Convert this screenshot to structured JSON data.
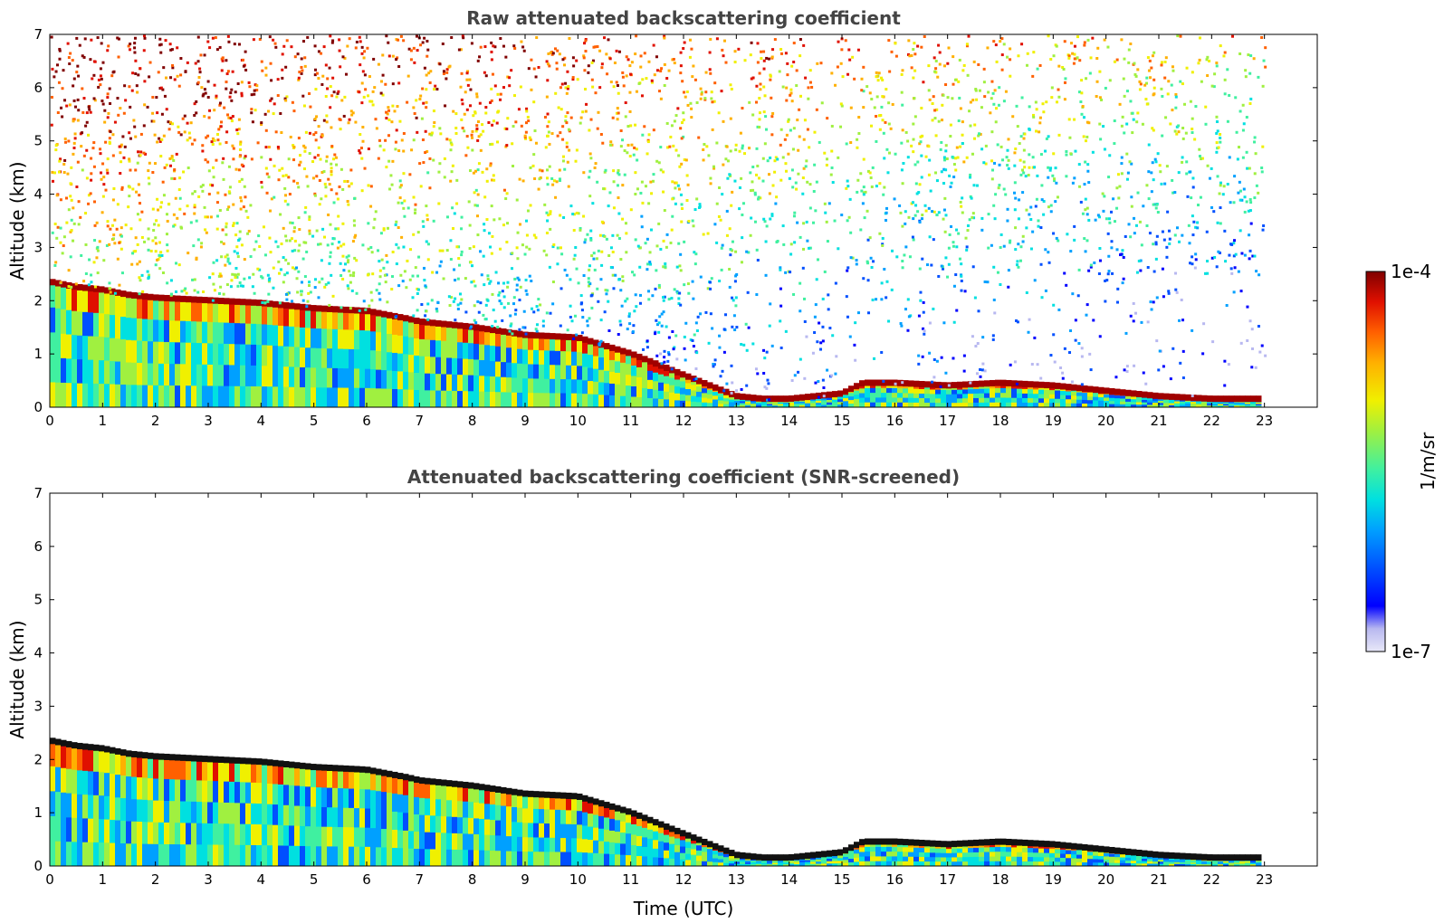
{
  "chart_data": [
    {
      "type": "heatmap",
      "title": "Raw attenuated backscattering coefficient",
      "xlabel": "",
      "ylabel": "Altitude (km)",
      "xlim": [
        0,
        24
      ],
      "ylim": [
        0,
        7
      ],
      "x_ticks": [
        "0",
        "1",
        "2",
        "3",
        "4",
        "5",
        "6",
        "7",
        "8",
        "9",
        "10",
        "11",
        "12",
        "13",
        "14",
        "15",
        "16",
        "17",
        "18",
        "19",
        "20",
        "21",
        "22",
        "23"
      ],
      "y_ticks": [
        "0",
        "1",
        "2",
        "3",
        "4",
        "5",
        "6",
        "7"
      ],
      "data_end_time": 23,
      "noise_dense": true,
      "boundary_layer_top_km": {
        "x": [
          0,
          0.5,
          1,
          1.5,
          2,
          3,
          4,
          5,
          6,
          6.8,
          7,
          8,
          9,
          10,
          11,
          11.5,
          12,
          12.5,
          13,
          13.5,
          14,
          15,
          15.4,
          16,
          17,
          18,
          19,
          20,
          21,
          22,
          23
        ],
        "y": [
          2.35,
          2.25,
          2.2,
          2.1,
          2.05,
          2.0,
          1.95,
          1.85,
          1.8,
          1.65,
          1.6,
          1.5,
          1.35,
          1.3,
          1.0,
          0.8,
          0.6,
          0.4,
          0.2,
          0.15,
          0.15,
          0.25,
          0.45,
          0.45,
          0.4,
          0.45,
          0.4,
          0.3,
          0.2,
          0.15,
          0.15
        ]
      },
      "colorbar": {
        "min_label": "1e-7",
        "max_label": "1e-4",
        "unit": "1/m/sr"
      }
    },
    {
      "type": "heatmap",
      "title": "Attenuated backscattering coefficient (SNR-screened)",
      "xlabel": "Time (UTC)",
      "ylabel": "Altitude (km)",
      "xlim": [
        0,
        24
      ],
      "ylim": [
        0,
        7
      ],
      "x_ticks": [
        "0",
        "1",
        "2",
        "3",
        "4",
        "5",
        "6",
        "7",
        "8",
        "9",
        "10",
        "11",
        "12",
        "13",
        "14",
        "15",
        "16",
        "17",
        "18",
        "19",
        "20",
        "21",
        "22",
        "23"
      ],
      "y_ticks": [
        "0",
        "1",
        "2",
        "3",
        "4",
        "5",
        "6",
        "7"
      ],
      "data_end_time": 23,
      "noise_dense": false,
      "boundary_layer_top_km": {
        "x": [
          0,
          0.5,
          1,
          1.5,
          2,
          3,
          4,
          5,
          6,
          6.8,
          7,
          8,
          9,
          10,
          11,
          11.5,
          12,
          12.5,
          13,
          13.5,
          14,
          15,
          15.4,
          16,
          17,
          18,
          19,
          20,
          21,
          22,
          23
        ],
        "y": [
          2.35,
          2.25,
          2.2,
          2.1,
          2.05,
          2.0,
          1.95,
          1.85,
          1.8,
          1.65,
          1.6,
          1.5,
          1.35,
          1.3,
          1.0,
          0.8,
          0.6,
          0.4,
          0.2,
          0.15,
          0.15,
          0.25,
          0.45,
          0.45,
          0.4,
          0.45,
          0.4,
          0.3,
          0.2,
          0.15,
          0.15
        ]
      }
    }
  ],
  "colorbar": {
    "max_label": "1e-4",
    "min_label": "1e-7",
    "unit": "1/m/sr",
    "colors": [
      "#e8e8f8",
      "#b8b8f0",
      "#0000ff",
      "#0050ff",
      "#00a0ff",
      "#00e0e0",
      "#40f0a0",
      "#a0f040",
      "#f0f000",
      "#ffb000",
      "#ff6000",
      "#e01000",
      "#800000"
    ]
  }
}
